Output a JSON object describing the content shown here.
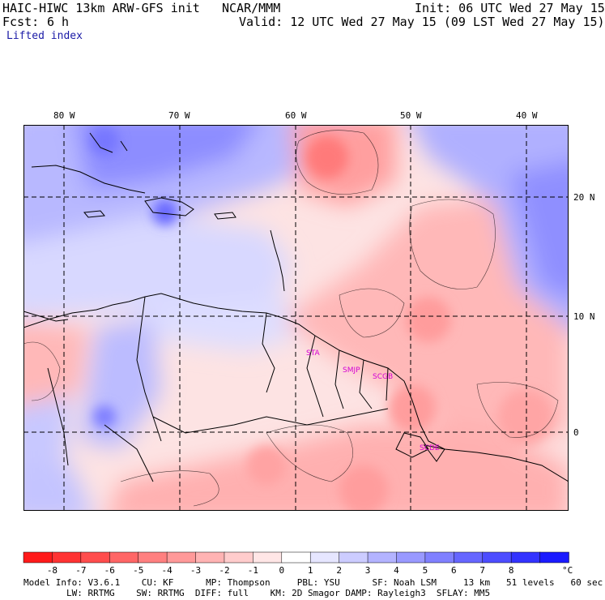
{
  "header": {
    "model_line": "HAIC-HIWC 13km ARW-GFS init",
    "org": "NCAR/MMM",
    "init": "Init: 06 UTC Wed 27 May 15",
    "fcst_label": "Fcst:",
    "fcst_value": "6 h",
    "valid": "Valid: 12 UTC Wed 27 May 15 (09 LST Wed 27 May 15)",
    "field": "Lifted index"
  },
  "map": {
    "lon_ticks": [
      "80 W",
      "70 W",
      "60 W",
      "50 W",
      "40 W"
    ],
    "lat_ticks": [
      "20 N",
      "10 N",
      "0"
    ],
    "stations": [
      "STA",
      "SMJP",
      "SCGB",
      "SCDE"
    ],
    "colors": {
      "grid": "#000000",
      "coast": "#000000",
      "station": "#d400d4"
    }
  },
  "colorbar": {
    "labels": [
      "-8",
      "-7",
      "-6",
      "-5",
      "-4",
      "-3",
      "-2",
      "-1",
      "0",
      "1",
      "2",
      "3",
      "4",
      "5",
      "6",
      "7",
      "8"
    ],
    "unit": "°C",
    "colors": [
      "#ff1a1a",
      "#ff3333",
      "#ff4d4d",
      "#ff6666",
      "#ff8080",
      "#ff9999",
      "#ffb3b3",
      "#ffcccc",
      "#ffe6e6",
      "#ffffff",
      "#e6e6ff",
      "#ccccff",
      "#b3b3ff",
      "#9999ff",
      "#8080ff",
      "#6666ff",
      "#4d4dff",
      "#3333ff",
      "#1a1aff"
    ]
  },
  "footer": {
    "line1": "Model Info: V3.6.1    CU: KF      MP: Thompson     PBL: YSU      SF: Noah LSM     13 km   51 levels   60 sec",
    "line2": "        LW: RRTMG    SW: RRTMG  DIFF: full    KM: 2D Smagor DAMP: Rayleigh3  SFLAY: MM5"
  }
}
